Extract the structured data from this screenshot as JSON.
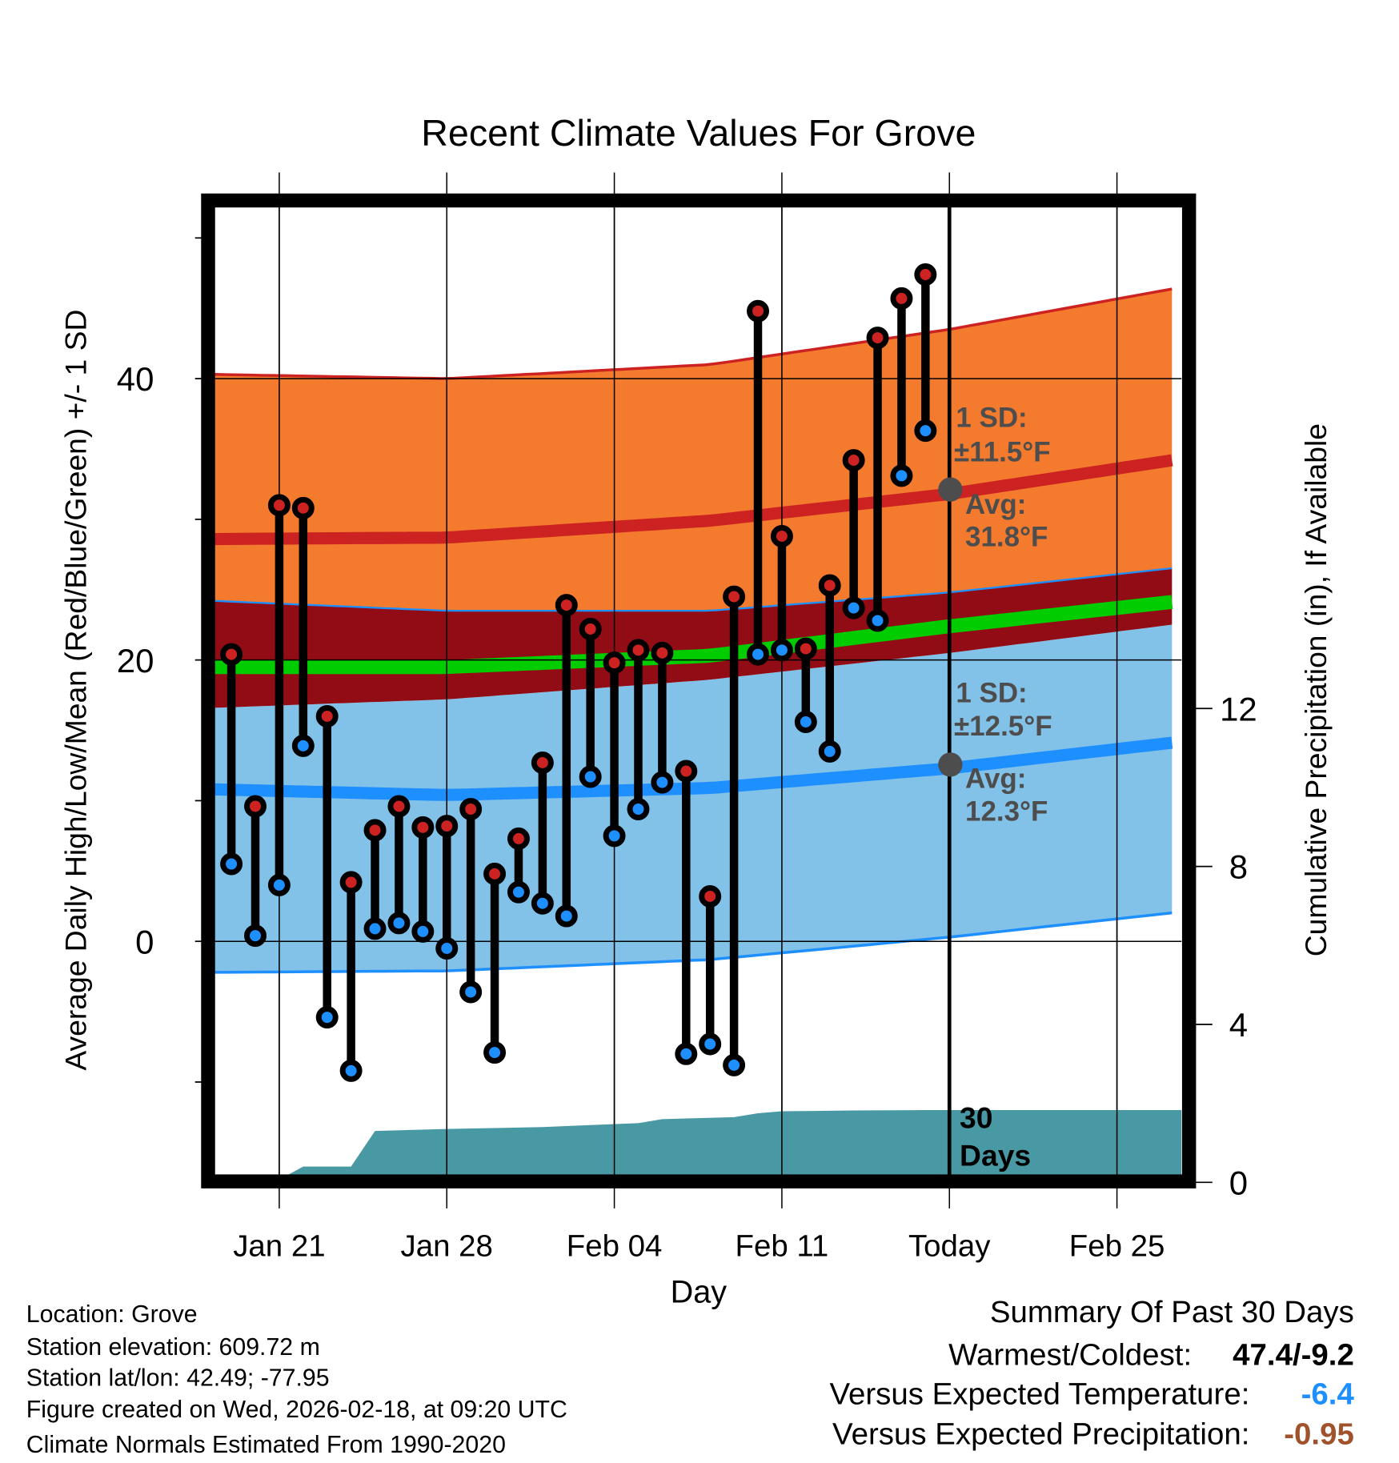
{
  "chart_data": {
    "type": "line",
    "title": "Recent Climate Values For Grove",
    "xlabel": "Day",
    "ylabel": "Average Daily High/Low/Mean (Red/Blue/Green) +/- 1 SD",
    "y2label": "Cumulative Precipitation (in), If Available",
    "x_ticks": [
      {
        "day": 2,
        "label": "Jan 21"
      },
      {
        "day": 9,
        "label": "Jan 28"
      },
      {
        "day": 16,
        "label": "Feb 04"
      },
      {
        "day": 23,
        "label": "Feb 11"
      },
      {
        "day": 30,
        "label": "Today"
      },
      {
        "day": 37,
        "label": "Feb 25"
      }
    ],
    "x_range_days": [
      -0.7,
      39.7
    ],
    "day_zero": "Jan 19",
    "y_ticks": [
      0,
      20,
      40
    ],
    "y_range": [
      -16.6,
      52.2
    ],
    "y2_ticks": [
      0,
      4,
      8,
      12
    ],
    "y2_range": [
      0,
      24.7
    ],
    "grid": true,
    "days": [
      "Jan 19",
      "Jan 20",
      "Jan 21",
      "Jan 22",
      "Jan 23",
      "Jan 24",
      "Jan 25",
      "Jan 26",
      "Jan 27",
      "Jan 28",
      "Jan 29",
      "Jan 30",
      "Jan 31",
      "Feb 01",
      "Feb 02",
      "Feb 03",
      "Feb 04",
      "Feb 05",
      "Feb 06",
      "Feb 07",
      "Feb 08",
      "Feb 09",
      "Feb 10",
      "Feb 11",
      "Feb 12",
      "Feb 13",
      "Feb 14",
      "Feb 15",
      "Feb 16",
      "Feb 17"
    ],
    "highs": [
      20.4,
      9.6,
      31.0,
      30.8,
      16.0,
      4.2,
      7.9,
      9.6,
      8.1,
      8.2,
      9.4,
      4.8,
      7.3,
      12.7,
      23.9,
      22.2,
      19.8,
      20.7,
      20.5,
      12.1,
      3.2,
      24.5,
      44.8,
      28.8,
      20.8,
      25.3,
      34.2,
      42.9,
      45.7,
      47.4
    ],
    "lows": [
      5.5,
      0.4,
      4.0,
      13.9,
      -5.4,
      -9.2,
      0.9,
      1.3,
      0.7,
      -0.5,
      -3.6,
      -7.9,
      3.5,
      2.7,
      1.8,
      11.7,
      7.5,
      9.4,
      11.3,
      -8.0,
      -7.3,
      -8.8,
      20.4,
      20.7,
      15.6,
      13.5,
      23.7,
      22.8,
      33.1,
      36.3
    ],
    "normals": {
      "days": [
        -0.7,
        9,
        20,
        30,
        39.7
      ],
      "high_plus_sd": [
        40.3,
        40.0,
        41.0,
        43.5,
        46.5
      ],
      "high_avg": [
        28.6,
        28.7,
        29.9,
        31.8,
        34.3
      ],
      "high_minus_sd": [
        24.2,
        23.5,
        23.5,
        24.8,
        26.6
      ],
      "mean": [
        19.5,
        19.5,
        20.3,
        22.4,
        24.2
      ],
      "low_plus_sd": [
        16.6,
        17.2,
        18.6,
        20.5,
        22.6
      ],
      "low_avg": [
        10.8,
        10.4,
        10.9,
        12.3,
        14.2
      ],
      "low_minus_sd": [
        -2.2,
        -2.1,
        -1.3,
        0.3,
        2.1
      ]
    },
    "precip_cumulative": {
      "days": [
        -0.7,
        2.0,
        2.4,
        3.0,
        5.0,
        6.0,
        9.0,
        13.0,
        15.0,
        17.0,
        18.0,
        21.0,
        22.0,
        23.0,
        26.0,
        29.0,
        39.7
      ],
      "values": [
        0,
        0,
        0.2,
        0.4,
        0.4,
        1.3,
        1.35,
        1.4,
        1.45,
        1.5,
        1.6,
        1.65,
        1.75,
        1.8,
        1.82,
        1.83,
        1.83
      ]
    },
    "annotations": {
      "high_sd_label": "1 SD:",
      "high_sd_value": "±11.5°F",
      "high_avg_label": "Avg:",
      "high_avg_value": "31.8°F",
      "low_sd_label": "1 SD:",
      "low_sd_value": "±12.5°F",
      "low_avg_label": "Avg:",
      "low_avg_value": "12.3°F",
      "period_number": "30",
      "period_unit": "Days"
    },
    "colors": {
      "high_band": "#f47a2e",
      "overlap_band": "#910c14",
      "low_band": "#82c1e8",
      "high_line": "#cc2222",
      "low_line": "#1e8fff",
      "mean_line": "#00cc00",
      "precip": "#4899a3",
      "high_marker": "#cc2222",
      "low_marker": "#1e8fff",
      "annotation": "#4d4d4d"
    }
  },
  "footer": {
    "location": "Location: Grove",
    "elevation": "Station elevation: 609.72 m",
    "latlon": "Station lat/lon: 42.49; -77.95",
    "created": "Figure created on Wed, 2026-02-18, at 09:20 UTC",
    "normals": "Climate Normals Estimated From 1990-2020"
  },
  "summary": {
    "title": "Summary Of Past 30 Days",
    "warmest_coldest_label": "Warmest/Coldest:",
    "warmest_coldest_value": "47.4/-9.2",
    "temp_label": "Versus Expected Temperature:",
    "temp_value": "-6.4",
    "temp_color": "#1e8fff",
    "precip_label": "Versus Expected Precipitation:",
    "precip_value": "-0.95",
    "precip_color": "#a0522d"
  }
}
